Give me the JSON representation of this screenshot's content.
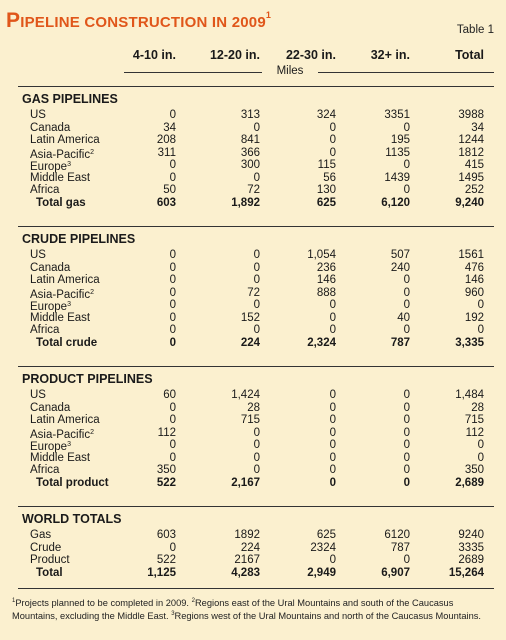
{
  "title": {
    "first_letter": "P",
    "rest": "ipeline construction in 2009",
    "footnote_mark": "1"
  },
  "table_label": "Table 1",
  "columns": [
    "4-10 in.",
    "12-20 in.",
    "22-30 in.",
    "32+ in.",
    "Total"
  ],
  "unit_label": "Miles",
  "sections": [
    {
      "title": "GAS PIPELINES",
      "rows": [
        {
          "label": "US",
          "sup": "",
          "values": [
            "0",
            "313",
            "324",
            "3351",
            "3988"
          ]
        },
        {
          "label": "Canada",
          "sup": "",
          "values": [
            "34",
            "0",
            "0",
            "0",
            "34"
          ]
        },
        {
          "label": "Latin America",
          "sup": "",
          "values": [
            "208",
            "841",
            "0",
            "195",
            "1244"
          ]
        },
        {
          "label": "Asia-Pacific",
          "sup": "2",
          "values": [
            "311",
            "366",
            "0",
            "1135",
            "1812"
          ]
        },
        {
          "label": "Europe",
          "sup": "3",
          "values": [
            "0",
            "300",
            "115",
            "0",
            "415"
          ]
        },
        {
          "label": "Middle East",
          "sup": "",
          "values": [
            "0",
            "0",
            "56",
            "1439",
            "1495"
          ]
        },
        {
          "label": "Africa",
          "sup": "",
          "values": [
            "50",
            "72",
            "130",
            "0",
            "252"
          ]
        }
      ],
      "total": {
        "label": "Total gas",
        "values": [
          "603",
          "1,892",
          "625",
          "6,120",
          "9,240"
        ]
      }
    },
    {
      "title": "CRUDE PIPELINES",
      "rows": [
        {
          "label": "US",
          "sup": "",
          "values": [
            "0",
            "0",
            "1,054",
            "507",
            "1561"
          ]
        },
        {
          "label": "Canada",
          "sup": "",
          "values": [
            "0",
            "0",
            "236",
            "240",
            "476"
          ]
        },
        {
          "label": "Latin America",
          "sup": "",
          "values": [
            "0",
            "0",
            "146",
            "0",
            "146"
          ]
        },
        {
          "label": "Asia-Pacific",
          "sup": "2",
          "values": [
            "0",
            "72",
            "888",
            "0",
            "960"
          ]
        },
        {
          "label": "Europe",
          "sup": "3",
          "values": [
            "0",
            "0",
            "0",
            "0",
            "0"
          ]
        },
        {
          "label": "Middle East",
          "sup": "",
          "values": [
            "0",
            "152",
            "0",
            "40",
            "192"
          ]
        },
        {
          "label": "Africa",
          "sup": "",
          "values": [
            "0",
            "0",
            "0",
            "0",
            "0"
          ]
        }
      ],
      "total": {
        "label": "Total crude",
        "values": [
          "0",
          "224",
          "2,324",
          "787",
          "3,335"
        ]
      }
    },
    {
      "title": "PRODUCT PIPELINES",
      "rows": [
        {
          "label": "US",
          "sup": "",
          "values": [
            "60",
            "1,424",
            "0",
            "0",
            "1,484"
          ]
        },
        {
          "label": "Canada",
          "sup": "",
          "values": [
            "0",
            "28",
            "0",
            "0",
            "28"
          ]
        },
        {
          "label": "Latin America",
          "sup": "",
          "values": [
            "0",
            "715",
            "0",
            "0",
            "715"
          ]
        },
        {
          "label": "Asia-Pacific",
          "sup": "2",
          "values": [
            "112",
            "0",
            "0",
            "0",
            "112"
          ]
        },
        {
          "label": "Europe",
          "sup": "3",
          "values": [
            "0",
            "0",
            "0",
            "0",
            "0"
          ]
        },
        {
          "label": "Middle East",
          "sup": "",
          "values": [
            "0",
            "0",
            "0",
            "0",
            "0"
          ]
        },
        {
          "label": "Africa",
          "sup": "",
          "values": [
            "350",
            "0",
            "0",
            "0",
            "350"
          ]
        }
      ],
      "total": {
        "label": "Total product",
        "values": [
          "522",
          "2,167",
          "0",
          "0",
          "2,689"
        ]
      }
    },
    {
      "title": "WORLD TOTALS",
      "rows": [
        {
          "label": "Gas",
          "sup": "",
          "values": [
            "603",
            "1892",
            "625",
            "6120",
            "9240"
          ]
        },
        {
          "label": "Crude",
          "sup": "",
          "values": [
            "0",
            "224",
            "2324",
            "787",
            "3335"
          ]
        },
        {
          "label": "Product",
          "sup": "",
          "values": [
            "522",
            "2167",
            "0",
            "0",
            "2689"
          ]
        }
      ],
      "total": {
        "label": "Total",
        "values": [
          "1,125",
          "4,283",
          "2,949",
          "6,907",
          "15,264"
        ]
      }
    }
  ],
  "footnotes": {
    "f1_mark": "1",
    "f1_text": "Projects planned to be completed in 2009.",
    "f2_mark": "2",
    "f2_text": "Regions east of the Ural Mountains and south of the Caucasus Mountains, excluding the Middle East.",
    "f3_mark": "3",
    "f3_text": "Regions west of the Ural Mountains and north of the Caucasus Mountains."
  },
  "colors": {
    "background": "#fbf0cf",
    "title": "#e0561a",
    "text": "#1a1a1a"
  }
}
